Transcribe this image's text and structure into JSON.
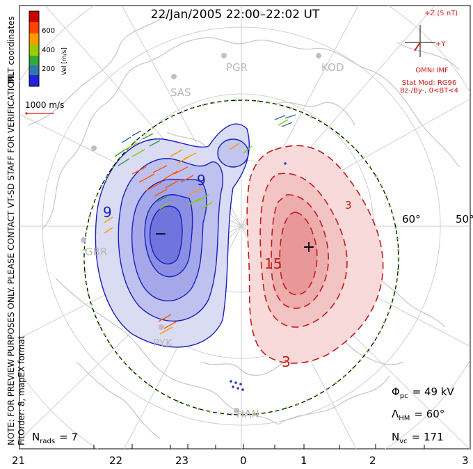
{
  "title": "22/Jan/2005 22:00–22:02 UT",
  "colorbar": {
    "label": "Vel [m/s]",
    "ticks": [
      "600",
      "400",
      "200"
    ],
    "colors": [
      "#cc0000",
      "#ff4400",
      "#ff9900",
      "#99cc00",
      "#33aa33",
      "#3377aa",
      "#2222dd"
    ]
  },
  "left_labels": {
    "coords": "MLT coordinates",
    "note": "NOTE: FOR PREVIEW PURPOSES ONLY. PLEASE CONTACT VT-SD STAFF FOR VERIFICATION.",
    "fit": "FitOrder: 8, mapEX format"
  },
  "scale_vector": "1000 m/s",
  "imf": {
    "z_label": "+Z (5 nT)",
    "y_label": "+Y",
    "source": "OMNI IMF",
    "model": "Stat Mod: RG96",
    "condition": "Bz-/By-, 0<BT<4"
  },
  "stations": [
    "PGR",
    "KOD",
    "SAS",
    "GBR",
    "PYK",
    "HAN"
  ],
  "latitude_labels": [
    "60°",
    "50°"
  ],
  "contour_labels": [
    "9",
    "9",
    "15",
    "3",
    "3"
  ],
  "pole_markers": {
    "negative": "−",
    "positive": "+"
  },
  "stats": {
    "nrads_label": "N",
    "nrads_sub": "rads",
    "nrads_value": "= 7",
    "phi_label": "Φ",
    "phi_sub": "pc",
    "phi_value": "= 49 kV",
    "lambda_label": "Λ",
    "lambda_sub": "HM",
    "lambda_value": "= 60°",
    "nvc_label": "N",
    "nvc_sub": "vc",
    "nvc_value": "= 171"
  },
  "mlt_axis": [
    "21",
    "22",
    "23",
    "0",
    "1",
    "2",
    "3"
  ],
  "chart_data": {
    "type": "polar-convection-map",
    "hemisphere": "north",
    "coordinates": "MLT",
    "n_rads": 7,
    "cross_polar_potential_kV": 49,
    "heppner_maynard_boundary_deg": 60,
    "n_vectors": 171,
    "velocity_colorscale_max_ms": 700
  }
}
